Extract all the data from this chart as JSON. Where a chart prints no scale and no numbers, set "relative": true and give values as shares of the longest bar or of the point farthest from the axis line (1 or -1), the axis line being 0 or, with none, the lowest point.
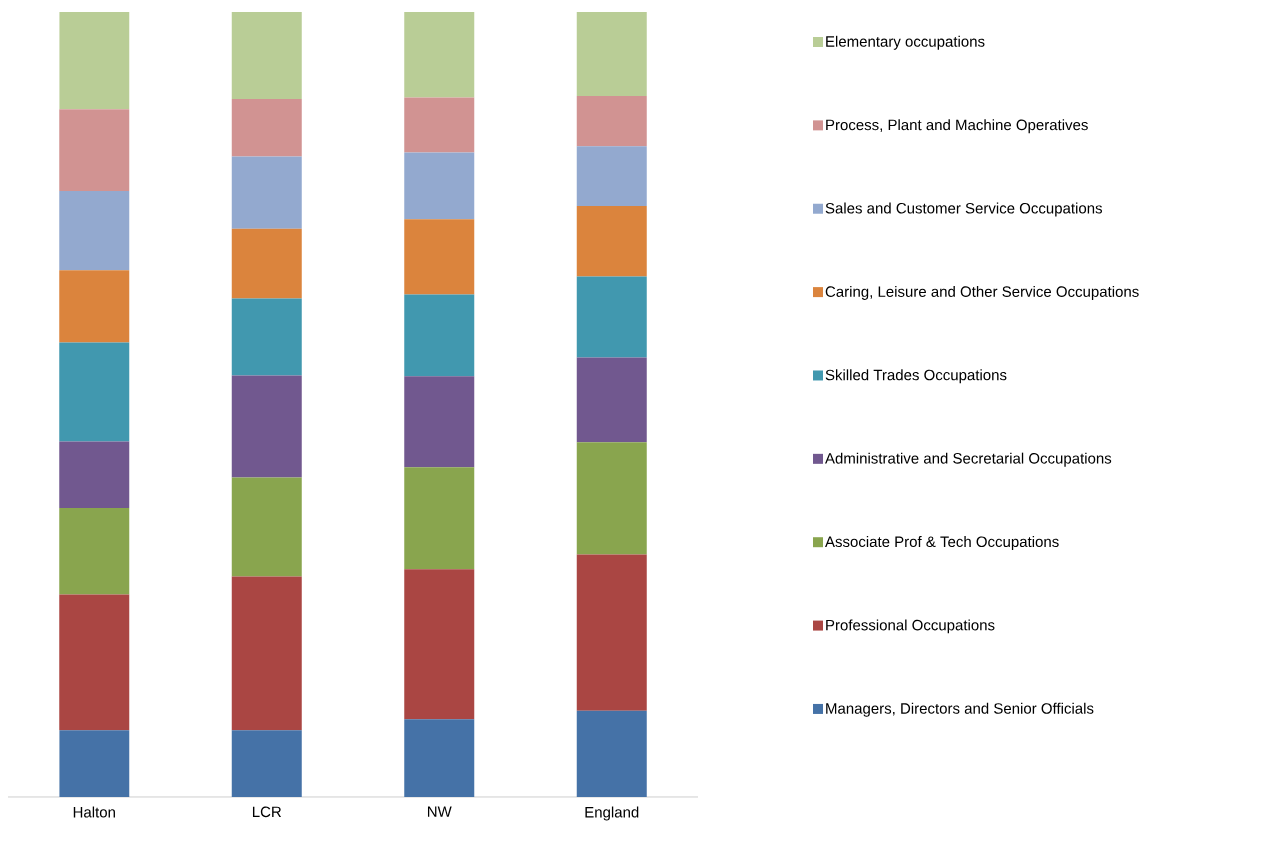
{
  "chart_data": {
    "type": "bar",
    "stacked": true,
    "relative": true,
    "legend": "right",
    "categories": [
      "Halton",
      "LCR",
      "NW",
      "England"
    ],
    "series": [
      {
        "name": "Managers, Directors and Senior Officials",
        "color": "#4572a7",
        "values": [
          0.085,
          0.085,
          0.099,
          0.11
        ]
      },
      {
        "name": "Professional Occupations",
        "color": "#aa4643",
        "values": [
          0.173,
          0.196,
          0.191,
          0.199
        ]
      },
      {
        "name": "Associate Prof & Tech Occupations",
        "color": "#89a54e",
        "values": [
          0.11,
          0.126,
          0.13,
          0.143
        ]
      },
      {
        "name": "Administrative and Secretarial Occupations",
        "color": "#71588f",
        "values": [
          0.085,
          0.13,
          0.116,
          0.108
        ]
      },
      {
        "name": "Skilled Trades Occupations",
        "color": "#4198af",
        "values": [
          0.126,
          0.098,
          0.104,
          0.103
        ]
      },
      {
        "name": "Caring, Leisure and Other Service Occupations",
        "color": "#db843d",
        "values": [
          0.092,
          0.089,
          0.096,
          0.09
        ]
      },
      {
        "name": "Sales and Customer Service Occupations",
        "color": "#93a9cf",
        "values": [
          0.101,
          0.092,
          0.085,
          0.076
        ]
      },
      {
        "name": "Process, Plant and Machine Operatives",
        "color": "#d19392",
        "values": [
          0.104,
          0.073,
          0.07,
          0.064
        ]
      },
      {
        "name": "Elementary occupations",
        "color": "#b9cd96",
        "values": [
          0.124,
          0.111,
          0.109,
          0.107
        ]
      }
    ]
  }
}
